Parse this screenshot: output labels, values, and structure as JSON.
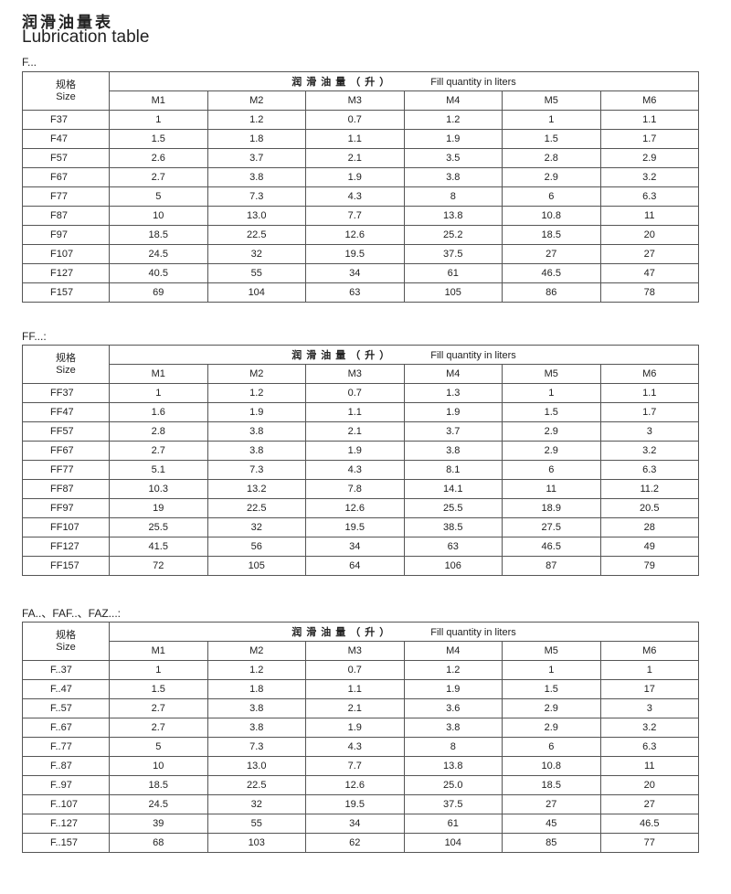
{
  "title_cn": "润滑油量表",
  "title_en": "Lubrication table",
  "tables": [
    {
      "label": "F...",
      "size_header_cn": "规格",
      "size_header_en": "Size",
      "fill_header_cn": "润滑油量（升）",
      "fill_header_en": "Fill quantity in liters",
      "columns": [
        "M1",
        "M2",
        "M3",
        "M4",
        "M5",
        "M6"
      ],
      "rows": [
        {
          "size": "F37",
          "values": [
            "1",
            "1.2",
            "0.7",
            "1.2",
            "1",
            "1.1"
          ]
        },
        {
          "size": "F47",
          "values": [
            "1.5",
            "1.8",
            "1.1",
            "1.9",
            "1.5",
            "1.7"
          ]
        },
        {
          "size": "F57",
          "values": [
            "2.6",
            "3.7",
            "2.1",
            "3.5",
            "2.8",
            "2.9"
          ]
        },
        {
          "size": "F67",
          "values": [
            "2.7",
            "3.8",
            "1.9",
            "3.8",
            "2.9",
            "3.2"
          ]
        },
        {
          "size": "F77",
          "values": [
            "5",
            "7.3",
            "4.3",
            "8",
            "6",
            "6.3"
          ]
        },
        {
          "size": "F87",
          "values": [
            "10",
            "13.0",
            "7.7",
            "13.8",
            "10.8",
            "11"
          ]
        },
        {
          "size": "F97",
          "values": [
            "18.5",
            "22.5",
            "12.6",
            "25.2",
            "18.5",
            "20"
          ]
        },
        {
          "size": "F107",
          "values": [
            "24.5",
            "32",
            "19.5",
            "37.5",
            "27",
            "27"
          ]
        },
        {
          "size": "F127",
          "values": [
            "40.5",
            "55",
            "34",
            "61",
            "46.5",
            "47"
          ]
        },
        {
          "size": "F157",
          "values": [
            "69",
            "104",
            "63",
            "105",
            "86",
            "78"
          ]
        }
      ]
    },
    {
      "label": "FF...:",
      "size_header_cn": "规格",
      "size_header_en": "Size",
      "fill_header_cn": "润滑油量（升）",
      "fill_header_en": "Fill quantity in liters",
      "columns": [
        "M1",
        "M2",
        "M3",
        "M4",
        "M5",
        "M6"
      ],
      "rows": [
        {
          "size": "FF37",
          "values": [
            "1",
            "1.2",
            "0.7",
            "1.3",
            "1",
            "1.1"
          ]
        },
        {
          "size": "FF47",
          "values": [
            "1.6",
            "1.9",
            "1.1",
            "1.9",
            "1.5",
            "1.7"
          ]
        },
        {
          "size": "FF57",
          "values": [
            "2.8",
            "3.8",
            "2.1",
            "3.7",
            "2.9",
            "3"
          ]
        },
        {
          "size": "FF67",
          "values": [
            "2.7",
            "3.8",
            "1.9",
            "3.8",
            "2.9",
            "3.2"
          ]
        },
        {
          "size": "FF77",
          "values": [
            "5.1",
            "7.3",
            "4.3",
            "8.1",
            "6",
            "6.3"
          ]
        },
        {
          "size": "FF87",
          "values": [
            "10.3",
            "13.2",
            "7.8",
            "14.1",
            "11",
            "11.2"
          ]
        },
        {
          "size": "FF97",
          "values": [
            "19",
            "22.5",
            "12.6",
            "25.5",
            "18.9",
            "20.5"
          ]
        },
        {
          "size": "FF107",
          "values": [
            "25.5",
            "32",
            "19.5",
            "38.5",
            "27.5",
            "28"
          ]
        },
        {
          "size": "FF127",
          "values": [
            "41.5",
            "56",
            "34",
            "63",
            "46.5",
            "49"
          ]
        },
        {
          "size": "FF157",
          "values": [
            "72",
            "105",
            "64",
            "106",
            "87",
            "79"
          ]
        }
      ]
    },
    {
      "label": "FA..、FAF..、FAZ...:",
      "size_header_cn": "规格",
      "size_header_en": "Size",
      "fill_header_cn": "润滑油量（升）",
      "fill_header_en": "Fill quantity in liters",
      "columns": [
        "M1",
        "M2",
        "M3",
        "M4",
        "M5",
        "M6"
      ],
      "rows": [
        {
          "size": "F..37",
          "values": [
            "1",
            "1.2",
            "0.7",
            "1.2",
            "1",
            "1"
          ]
        },
        {
          "size": "F..47",
          "values": [
            "1.5",
            "1.8",
            "1.1",
            "1.9",
            "1.5",
            "17"
          ]
        },
        {
          "size": "F..57",
          "values": [
            "2.7",
            "3.8",
            "2.1",
            "3.6",
            "2.9",
            "3"
          ]
        },
        {
          "size": "F..67",
          "values": [
            "2.7",
            "3.8",
            "1.9",
            "3.8",
            "2.9",
            "3.2"
          ]
        },
        {
          "size": "F..77",
          "values": [
            "5",
            "7.3",
            "4.3",
            "8",
            "6",
            "6.3"
          ]
        },
        {
          "size": "F..87",
          "values": [
            "10",
            "13.0",
            "7.7",
            "13.8",
            "10.8",
            "11"
          ]
        },
        {
          "size": "F..97",
          "values": [
            "18.5",
            "22.5",
            "12.6",
            "25.0",
            "18.5",
            "20"
          ]
        },
        {
          "size": "F..107",
          "values": [
            "24.5",
            "32",
            "19.5",
            "37.5",
            "27",
            "27"
          ]
        },
        {
          "size": "F..127",
          "values": [
            "39",
            "55",
            "34",
            "61",
            "45",
            "46.5"
          ]
        },
        {
          "size": "F..157",
          "values": [
            "68",
            "103",
            "62",
            "104",
            "85",
            "77"
          ]
        }
      ]
    }
  ]
}
